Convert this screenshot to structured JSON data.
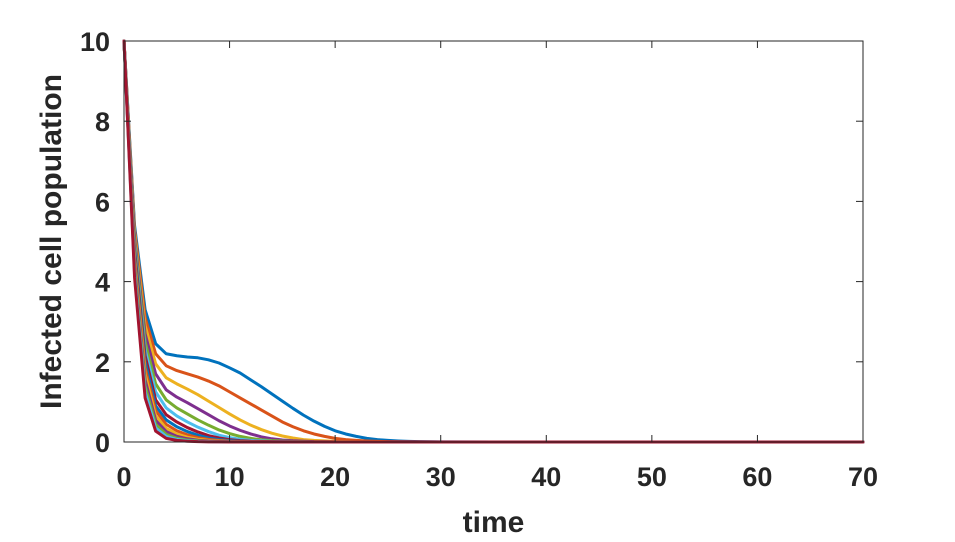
{
  "chart_data": {
    "type": "line",
    "title": "",
    "xlabel": "time",
    "ylabel": "Infected cell population",
    "xlim": [
      0,
      70
    ],
    "ylim": [
      0,
      10
    ],
    "xticks": [
      "0",
      "10",
      "20",
      "30",
      "40",
      "50",
      "60",
      "70"
    ],
    "yticks": [
      "0",
      "2",
      "4",
      "6",
      "8",
      "10"
    ],
    "grid": false,
    "legend": "none",
    "series": [
      {
        "color": "#0072BD",
        "x": [
          0,
          1,
          2,
          3,
          4,
          5,
          6,
          7,
          8,
          9,
          10,
          11,
          12,
          13,
          14,
          15,
          16,
          17,
          18,
          19,
          20,
          21,
          22,
          23,
          24,
          25,
          26,
          27,
          28,
          29,
          30,
          35,
          40,
          50,
          60,
          70
        ],
        "y": [
          10,
          5.4,
          3.3,
          2.45,
          2.2,
          2.15,
          2.12,
          2.1,
          2.05,
          1.97,
          1.85,
          1.72,
          1.55,
          1.38,
          1.2,
          1.02,
          0.84,
          0.67,
          0.52,
          0.39,
          0.28,
          0.2,
          0.14,
          0.09,
          0.06,
          0.04,
          0.025,
          0.015,
          0.01,
          0.006,
          0.004,
          0.001,
          0,
          0,
          0,
          0
        ]
      },
      {
        "color": "#D95319",
        "x": [
          0,
          1,
          2,
          3,
          4,
          5,
          6,
          7,
          8,
          9,
          10,
          11,
          12,
          13,
          14,
          15,
          16,
          17,
          18,
          19,
          20,
          21,
          22,
          23,
          24,
          25,
          26,
          28,
          30,
          35,
          40,
          50,
          60,
          70
        ],
        "y": [
          10,
          5.3,
          3.1,
          2.2,
          1.9,
          1.78,
          1.7,
          1.62,
          1.52,
          1.4,
          1.25,
          1.1,
          0.95,
          0.8,
          0.65,
          0.5,
          0.38,
          0.28,
          0.2,
          0.14,
          0.09,
          0.06,
          0.04,
          0.025,
          0.015,
          0.01,
          0.006,
          0.002,
          0.001,
          0,
          0,
          0,
          0,
          0
        ]
      },
      {
        "color": "#EDB120",
        "x": [
          0,
          1,
          2,
          3,
          4,
          5,
          6,
          7,
          8,
          9,
          10,
          11,
          12,
          13,
          14,
          15,
          16,
          17,
          18,
          20,
          22,
          25,
          30,
          40,
          50,
          60,
          70
        ],
        "y": [
          10,
          5.2,
          2.9,
          1.95,
          1.6,
          1.45,
          1.32,
          1.18,
          1.02,
          0.86,
          0.7,
          0.55,
          0.42,
          0.31,
          0.22,
          0.15,
          0.1,
          0.06,
          0.04,
          0.015,
          0.005,
          0.001,
          0,
          0,
          0,
          0,
          0
        ]
      },
      {
        "color": "#7E2F8E",
        "x": [
          0,
          1,
          2,
          3,
          4,
          5,
          6,
          7,
          8,
          9,
          10,
          11,
          12,
          13,
          14,
          15,
          16,
          18,
          20,
          25,
          30,
          40,
          50,
          60,
          70
        ],
        "y": [
          10,
          5.1,
          2.7,
          1.7,
          1.3,
          1.12,
          0.98,
          0.83,
          0.68,
          0.53,
          0.4,
          0.29,
          0.2,
          0.13,
          0.08,
          0.05,
          0.03,
          0.01,
          0.003,
          0,
          0,
          0,
          0,
          0,
          0
        ]
      },
      {
        "color": "#77AC30",
        "x": [
          0,
          1,
          2,
          3,
          4,
          5,
          6,
          7,
          8,
          9,
          10,
          11,
          12,
          13,
          14,
          16,
          18,
          20,
          25,
          30,
          40,
          50,
          60,
          70
        ],
        "y": [
          10,
          5,
          2.5,
          1.45,
          1.05,
          0.85,
          0.7,
          0.55,
          0.42,
          0.3,
          0.21,
          0.14,
          0.09,
          0.055,
          0.035,
          0.012,
          0.004,
          0.001,
          0,
          0,
          0,
          0,
          0,
          0
        ]
      },
      {
        "color": "#4DBEEE",
        "x": [
          0,
          1,
          2,
          3,
          4,
          5,
          6,
          7,
          8,
          9,
          10,
          11,
          12,
          14,
          16,
          18,
          20,
          25,
          30,
          40,
          50,
          60,
          70
        ],
        "y": [
          10,
          4.9,
          2.3,
          1.25,
          0.85,
          0.65,
          0.5,
          0.37,
          0.26,
          0.17,
          0.11,
          0.07,
          0.04,
          0.015,
          0.005,
          0.001,
          0,
          0,
          0,
          0,
          0,
          0,
          0
        ]
      },
      {
        "color": "#A2142F",
        "x": [
          0,
          1,
          2,
          3,
          4,
          5,
          6,
          7,
          8,
          9,
          10,
          11,
          12,
          14,
          16,
          18,
          20,
          25,
          30,
          40,
          50,
          60,
          70
        ],
        "y": [
          10,
          4.8,
          2.15,
          1.05,
          0.68,
          0.5,
          0.36,
          0.25,
          0.16,
          0.1,
          0.06,
          0.035,
          0.02,
          0.006,
          0.002,
          0,
          0,
          0,
          0,
          0,
          0,
          0,
          0
        ]
      },
      {
        "color": "#0072BD",
        "x": [
          0,
          1,
          2,
          3,
          4,
          5,
          6,
          7,
          8,
          9,
          10,
          11,
          12,
          14,
          16,
          18,
          20,
          25,
          30,
          40,
          50,
          60,
          70
        ],
        "y": [
          10,
          4.7,
          2,
          0.9,
          0.55,
          0.38,
          0.26,
          0.17,
          0.1,
          0.06,
          0.035,
          0.02,
          0.01,
          0.003,
          0.001,
          0,
          0,
          0,
          0,
          0,
          0,
          0,
          0
        ]
      },
      {
        "color": "#D95319",
        "x": [
          0,
          1,
          2,
          3,
          4,
          5,
          6,
          7,
          8,
          9,
          10,
          11,
          12,
          14,
          16,
          18,
          20,
          25,
          30,
          40,
          50,
          60,
          70
        ],
        "y": [
          10,
          4.6,
          1.85,
          0.78,
          0.44,
          0.28,
          0.18,
          0.11,
          0.065,
          0.038,
          0.02,
          0.011,
          0.006,
          0.002,
          0,
          0,
          0,
          0,
          0,
          0,
          0,
          0,
          0
        ]
      },
      {
        "color": "#EDB120",
        "x": [
          0,
          1,
          2,
          3,
          4,
          5,
          6,
          7,
          8,
          9,
          10,
          11,
          12,
          14,
          16,
          18,
          20,
          25,
          30,
          40,
          50,
          60,
          70
        ],
        "y": [
          10,
          4.5,
          1.7,
          0.65,
          0.34,
          0.2,
          0.12,
          0.07,
          0.04,
          0.022,
          0.012,
          0.006,
          0.003,
          0.001,
          0,
          0,
          0,
          0,
          0,
          0,
          0,
          0,
          0
        ]
      },
      {
        "color": "#7E2F8E",
        "x": [
          0,
          1,
          2,
          3,
          4,
          5,
          6,
          7,
          8,
          9,
          10,
          12,
          14,
          16,
          18,
          20,
          25,
          30,
          40,
          50,
          60,
          70
        ],
        "y": [
          10,
          4.4,
          1.55,
          0.54,
          0.26,
          0.14,
          0.08,
          0.045,
          0.025,
          0.013,
          0.007,
          0.002,
          0,
          0,
          0,
          0,
          0,
          0,
          0,
          0,
          0,
          0
        ]
      },
      {
        "color": "#77AC30",
        "x": [
          0,
          1,
          2,
          3,
          4,
          5,
          6,
          7,
          8,
          9,
          10,
          12,
          14,
          16,
          18,
          20,
          25,
          30,
          40,
          50,
          60,
          70
        ],
        "y": [
          10,
          4.3,
          1.4,
          0.44,
          0.19,
          0.095,
          0.05,
          0.027,
          0.014,
          0.007,
          0.004,
          0.001,
          0,
          0,
          0,
          0,
          0,
          0,
          0,
          0,
          0,
          0
        ]
      },
      {
        "color": "#4DBEEE",
        "x": [
          0,
          1,
          2,
          3,
          4,
          5,
          6,
          7,
          8,
          9,
          10,
          12,
          14,
          16,
          18,
          20,
          25,
          30,
          40,
          50,
          60,
          70
        ],
        "y": [
          10,
          4.2,
          1.25,
          0.35,
          0.14,
          0.065,
          0.032,
          0.016,
          0.008,
          0.004,
          0.002,
          0,
          0,
          0,
          0,
          0,
          0,
          0,
          0,
          0,
          0,
          0
        ]
      },
      {
        "color": "#A2142F",
        "x": [
          0,
          1,
          2,
          3,
          4,
          5,
          6,
          7,
          8,
          9,
          10,
          12,
          14,
          16,
          18,
          20,
          25,
          30,
          40,
          50,
          60,
          70
        ],
        "y": [
          10,
          4.1,
          1.1,
          0.27,
          0.09,
          0.04,
          0.018,
          0.008,
          0.004,
          0.002,
          0.001,
          0,
          0,
          0,
          0,
          0,
          0,
          0,
          0,
          0,
          0,
          0
        ]
      }
    ]
  }
}
